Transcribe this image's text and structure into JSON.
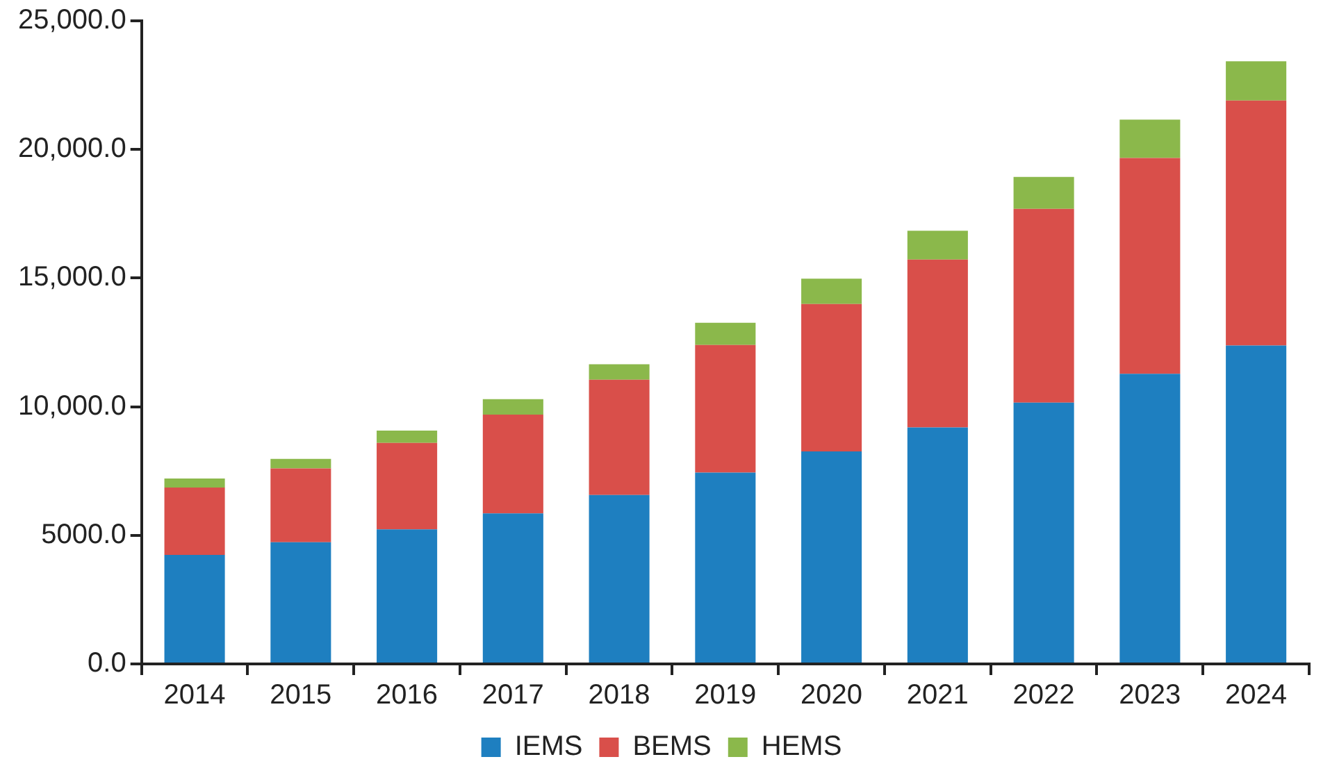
{
  "chart_data": {
    "type": "bar",
    "stacked": true,
    "categories": [
      "2014",
      "2015",
      "2016",
      "2017",
      "2018",
      "2019",
      "2020",
      "2021",
      "2022",
      "2023",
      "2024"
    ],
    "series": [
      {
        "name": "IEMS",
        "color": "#1e7fc0",
        "values": [
          4240,
          4730,
          5230,
          5850,
          6570,
          7440,
          8260,
          9190,
          10160,
          11280,
          12380
        ]
      },
      {
        "name": "BEMS",
        "color": "#d94f4a",
        "values": [
          2620,
          2870,
          3360,
          3840,
          4480,
          4960,
          5730,
          6530,
          7530,
          8390,
          9520
        ]
      },
      {
        "name": "HEMS",
        "color": "#8bb84b",
        "values": [
          350,
          370,
          480,
          600,
          600,
          860,
          990,
          1120,
          1240,
          1490,
          1530
        ]
      }
    ],
    "ylim": [
      0,
      25000
    ],
    "yticks": [
      {
        "value": 0,
        "label": "0.0"
      },
      {
        "value": 5000,
        "label": "5000.0"
      },
      {
        "value": 10000,
        "label": "10,000.0"
      },
      {
        "value": 15000,
        "label": "15,000.0"
      },
      {
        "value": 20000,
        "label": "20,000.0"
      },
      {
        "value": 25000,
        "label": "25,000.0"
      }
    ],
    "grid": false,
    "legend": "bottom"
  }
}
